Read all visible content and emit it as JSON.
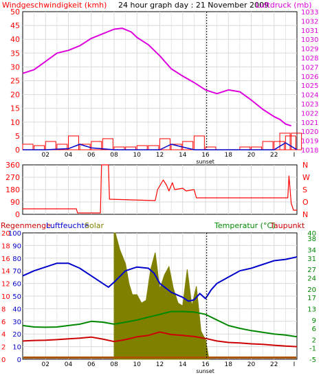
{
  "colors": {
    "wind": "#ff0000",
    "pressure": "#dd00dd",
    "humidity": "#0000cc",
    "temperature": "#008800",
    "dewpoint": "#cc0000",
    "solar": "#808000",
    "grid": "#d8d8d8",
    "frame": "#000000",
    "rain_baseline": "#aa5500"
  },
  "header": {
    "wind_label": "Windgeschwindigkeit (kmh)",
    "title": "24 hour graph day : 21 November 2009",
    "pressure_label": "Luftdruck (mb)"
  },
  "lower_header": {
    "rain_label": "Regenmenge",
    "humidity_label": "Luftfeuchte",
    "solar_label": "Solar",
    "temperature_label": "Temperatur (°C)",
    "dewpoint_label": "Taupunkt"
  },
  "sunset_label": "sunset",
  "chart_data": [
    {
      "type": "line",
      "title": "24 hour graph day : 21 November 2009",
      "x_tick_labels": [
        "02",
        "04",
        "06",
        "08",
        "10",
        "12",
        "14",
        "16",
        "18",
        "20",
        "22",
        "I"
      ],
      "xlim_hours": [
        0,
        24
      ],
      "sunset_hour": 16.1,
      "left_axis": {
        "label": "Windgeschwindigkeit (kmh)",
        "ylim": [
          0,
          50
        ],
        "ticks": [
          0,
          5,
          10,
          15,
          20,
          25,
          30,
          35,
          40,
          45,
          50
        ]
      },
      "right_axis": {
        "label": "Luftdruck (mb)",
        "ylim": [
          1018,
          1033
        ],
        "ticks": [
          1018,
          1019,
          1020,
          1021,
          1022,
          1023,
          1024,
          1025,
          1026,
          1027,
          1028,
          1029,
          1030,
          1031,
          1032,
          1033
        ]
      },
      "series": [
        {
          "name": "Luftdruck (mb)",
          "axis": "right",
          "x": [
            0,
            1,
            2,
            3,
            4,
            5,
            6,
            7,
            8,
            8.7,
            9.5,
            10,
            11,
            12,
            13,
            14,
            15,
            16,
            17,
            18,
            19,
            20,
            21,
            22,
            22.5,
            23,
            23.5
          ],
          "y": [
            1026.3,
            1026.7,
            1027.6,
            1028.5,
            1028.8,
            1029.3,
            1030.1,
            1030.6,
            1031.1,
            1031.2,
            1030.8,
            1030.2,
            1029.4,
            1028.2,
            1026.8,
            1026.0,
            1025.3,
            1024.5,
            1024.1,
            1024.5,
            1024.3,
            1023.4,
            1022.4,
            1021.6,
            1021.3,
            1020.8,
            1020.6
          ]
        },
        {
          "name": "Windgeschwindigkeit (kmh)",
          "axis": "left",
          "x": [
            0,
            1,
            2,
            3,
            4,
            5,
            6,
            7,
            8,
            9,
            10,
            11,
            12,
            13,
            14,
            15,
            16,
            17,
            18,
            19,
            20,
            21,
            22,
            22.5,
            23,
            23.5
          ],
          "y": [
            2,
            1.5,
            3,
            2,
            5,
            2,
            3,
            4,
            1,
            1,
            1.5,
            1.5,
            4,
            2,
            3,
            5,
            1,
            0,
            0,
            1,
            1,
            3,
            3,
            6,
            5,
            6
          ]
        },
        {
          "name": "Windgeschwindigkeit avg",
          "axis": "left",
          "x": [
            0,
            2,
            4,
            5,
            6,
            8,
            10,
            12,
            13,
            14,
            15,
            16,
            18,
            20,
            22,
            23,
            24
          ],
          "y": [
            0,
            0,
            0.4,
            2,
            0.7,
            0,
            0,
            0,
            2,
            1,
            0,
            0,
            0,
            0,
            0,
            2.5,
            0
          ]
        }
      ]
    },
    {
      "type": "line",
      "title": "",
      "x_tick_labels": [],
      "xlim_hours": [
        0,
        24
      ],
      "left_axis": {
        "label": "",
        "ylim": [
          0,
          360
        ],
        "ticks": [
          0,
          90,
          180,
          270,
          360
        ]
      },
      "right_axis": {
        "label": "",
        "ylim": [
          0,
          360
        ],
        "ticks": [
          "N",
          "W",
          "S",
          "O",
          "N"
        ]
      },
      "series": [
        {
          "name": "",
          "axis": "left",
          "x": [
            0,
            4.7,
            4.8,
            6.8,
            6.9,
            7.5,
            7.6,
            11.6,
            11.8,
            12.3,
            12.6,
            12.8,
            13.1,
            13.3,
            14,
            14.3,
            15,
            15.2,
            23.2,
            23.3,
            23.5,
            23.7,
            24
          ],
          "y": [
            40,
            40,
            10,
            10,
            360,
            360,
            110,
            100,
            180,
            250,
            210,
            170,
            230,
            180,
            190,
            170,
            180,
            120,
            120,
            280,
            80,
            30,
            30
          ]
        }
      ]
    },
    {
      "type": "line",
      "title": "",
      "x_tick_labels": [
        "02",
        "04",
        "06",
        "08",
        "10",
        "12",
        "14",
        "16",
        "18",
        "20",
        "22",
        "I"
      ],
      "xlim_hours": [
        0,
        24
      ],
      "sunset_hour": 16.1,
      "left_axis_rain": {
        "label": "Regenmenge",
        "ticks": [
          0,
          2,
          4,
          6,
          8,
          10,
          12,
          14,
          16,
          18,
          20
        ]
      },
      "left_axis_humidity": {
        "label": "Luftfeuchte",
        "ylim": [
          0,
          100
        ],
        "ticks": [
          0,
          10,
          20,
          30,
          40,
          50,
          60,
          70,
          80,
          90,
          100
        ]
      },
      "right_axis": {
        "label": "Temperatur (°C)",
        "ylim": [
          -5,
          40
        ],
        "ticks": [
          -5,
          -1,
          2,
          6,
          9,
          13,
          17,
          20,
          24,
          27,
          31,
          34,
          38,
          40
        ]
      },
      "series": [
        {
          "name": "Luftfeuchte",
          "axis": "humidity",
          "x": [
            0,
            1,
            2,
            3,
            4,
            5,
            6,
            7,
            7.5,
            8,
            9,
            10,
            11,
            11.5,
            12,
            13,
            14,
            14.5,
            15,
            15.5,
            16,
            16.5,
            17,
            18,
            19,
            20,
            21,
            22,
            23,
            24
          ],
          "y": [
            66,
            70,
            73,
            76,
            76,
            72,
            66,
            60,
            57,
            61,
            70,
            73,
            72,
            68,
            60,
            53,
            49,
            46,
            47,
            52,
            48,
            55,
            60,
            65,
            70,
            72,
            75,
            78,
            79,
            81
          ]
        },
        {
          "name": "Temperatur (°C)",
          "axis": "right",
          "x": [
            0,
            1,
            2,
            3,
            4,
            5,
            6,
            7,
            8,
            9,
            10,
            11,
            12,
            13,
            14,
            15,
            16,
            17,
            18,
            19,
            20,
            21,
            22,
            23,
            24
          ],
          "y": [
            7,
            6.5,
            6.4,
            6.5,
            7,
            7.5,
            8.5,
            8.2,
            7.5,
            8.2,
            9,
            10,
            11,
            12,
            12,
            11.8,
            11,
            9,
            7,
            6,
            5.2,
            4.6,
            4,
            3.6,
            3
          ]
        },
        {
          "name": "Taupunkt",
          "axis": "right",
          "x": [
            0,
            1,
            2,
            3,
            4,
            5,
            6,
            7,
            8,
            9,
            10,
            11,
            12,
            13,
            14,
            15,
            16,
            17,
            18,
            19,
            20,
            21,
            22,
            23,
            24
          ],
          "y": [
            1.5,
            1.7,
            1.8,
            2,
            2.3,
            2.5,
            2.9,
            2.2,
            1.3,
            2,
            3,
            3.5,
            4.7,
            3.8,
            3.5,
            3.1,
            2.4,
            1.5,
            1,
            0.8,
            0.5,
            0.3,
            0,
            -0.3,
            -0.5
          ]
        },
        {
          "name": "Solar",
          "axis": "right",
          "x": [
            8,
            8.1,
            8.5,
            9,
            9.3,
            9.6,
            10,
            10.4,
            10.8,
            11.2,
            11.6,
            12,
            12.4,
            12.8,
            13.2,
            13.6,
            14,
            14.4,
            14.8,
            15.2,
            15.6,
            16,
            16.3
          ],
          "y": [
            40,
            40,
            34,
            29,
            22,
            18,
            18,
            15,
            16,
            27,
            33,
            20,
            25,
            28,
            20,
            15,
            14,
            27,
            14,
            21,
            5,
            2,
            -5
          ]
        }
      ]
    }
  ]
}
